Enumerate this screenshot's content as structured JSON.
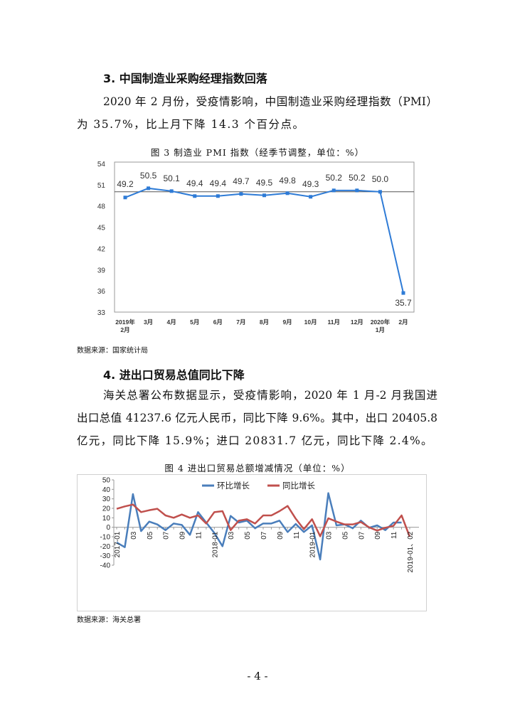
{
  "section3": {
    "heading": "3.  中国制造业采购经理指数回落",
    "lines": [
      "2020 年 2 月份，受疫情影响，中国制造业采购经理指数（PMI）",
      "为 35.7%，比上月下降 14.3 个百分点。"
    ],
    "figure_caption": "图 3   制造业 PMI 指数（经季节调整，单位：%）",
    "source": "数据来源：国家统计局"
  },
  "section4": {
    "heading": "4.  进出口贸易总值同比下降",
    "lines": [
      "海关总署公布数据显示，受疫情影响，2020 年 1 月-2 月我国进",
      "出口总值 41237.6 亿元人民币，同比下降 9.6%。其中，出口 20405.8",
      "亿元，同比下降 15.9%；进口 20831.7 亿元，同比下降 2.4%。"
    ],
    "figure_caption": "图 4   进出口贸易总额增减情况（单位：%）",
    "source": "数据来源：海关总署"
  },
  "page_number": "- 4 -",
  "chart_data": [
    {
      "type": "line",
      "title": "图 3   制造业 PMI 指数（经季节调整，单位：%）",
      "categories": [
        "2019年\n2月",
        "3月",
        "4月",
        "5月",
        "6月",
        "7月",
        "8月",
        "9月",
        "10月",
        "11月",
        "12月",
        "2020年\n1月",
        "2月"
      ],
      "values": [
        49.2,
        50.5,
        50.1,
        49.4,
        49.4,
        49.7,
        49.5,
        49.8,
        49.3,
        50.2,
        50.2,
        50.0,
        35.7
      ],
      "data_labels": [
        "49.2",
        "50.5",
        "50.1",
        "49.4",
        "49.4",
        "49.7",
        "49.5",
        "49.8",
        "49.3",
        "50.2",
        "50.2",
        "50.0",
        "35.7"
      ],
      "ylim": [
        33,
        54
      ],
      "yticks": [
        33,
        36,
        39,
        42,
        45,
        48,
        51,
        54
      ],
      "reference_line": 50,
      "color": "#2e7bd6",
      "grid": false
    },
    {
      "type": "line",
      "title": "图 4   进出口贸易总额增减情况（单位：%）",
      "tick_labels": [
        "2017-01",
        "03",
        "05",
        "07",
        "09",
        "11",
        "2018-01",
        "03",
        "05",
        "07",
        "09",
        "11",
        "2019-01",
        "03",
        "05",
        "07",
        "09",
        "11",
        "2019-01、02"
      ],
      "ylim": [
        -40,
        50
      ],
      "yticks": [
        -40,
        -30,
        -20,
        -10,
        0,
        10,
        20,
        30,
        40,
        50
      ],
      "legend_position": "top",
      "grid": false,
      "series": [
        {
          "name": "环比增长",
          "color": "#4a7ebb",
          "values": [
            -16,
            -21,
            35,
            -4,
            6,
            3,
            -3,
            4,
            2.5,
            -8,
            16,
            5,
            -6,
            -20,
            12,
            5,
            7,
            -1,
            4,
            4,
            7,
            -5,
            3.5,
            -5,
            2,
            -34,
            36,
            2,
            3,
            -1,
            7,
            -0.5,
            2,
            -3,
            5,
            5,
            null
          ]
        },
        {
          "name": "同比增长",
          "color": "#c0504d",
          "values": [
            19.5,
            22,
            24,
            16,
            18,
            19.5,
            12.5,
            10,
            13.5,
            10,
            12.5,
            4,
            16,
            17,
            -3,
            7,
            8.5,
            4,
            12.5,
            12.5,
            17,
            22.5,
            9,
            -2,
            8.5,
            -9.5,
            9.5,
            6,
            3,
            3,
            5.5,
            0,
            -3.5,
            -0.5,
            1.5,
            12.5,
            -10
          ]
        }
      ]
    }
  ]
}
